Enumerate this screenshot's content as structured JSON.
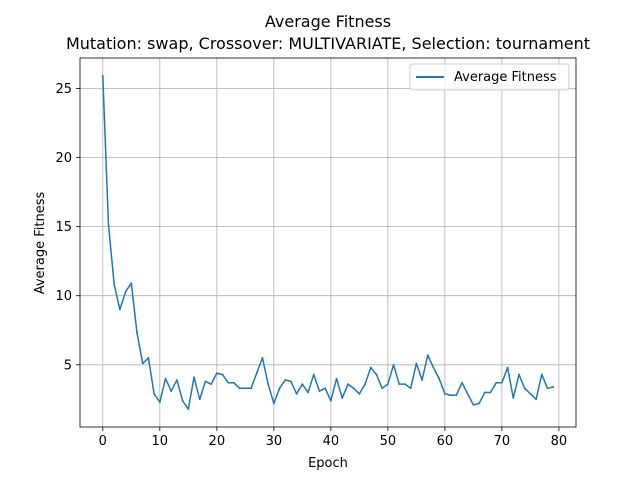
{
  "chart_data": {
    "type": "line",
    "title": "Average Fitness",
    "subtitle": "Mutation: swap, Crossover: MULTIVARIATE, Selection: tournament",
    "xlabel": "Epoch",
    "ylabel": "Average Fitness",
    "xlim": [
      -4,
      83
    ],
    "ylim": [
      0.5,
      27.2
    ],
    "xticks": [
      0,
      10,
      20,
      30,
      40,
      50,
      60,
      70,
      80
    ],
    "yticks": [
      5,
      10,
      15,
      20,
      25
    ],
    "grid": true,
    "legend_position": "top-right",
    "series": [
      {
        "name": "Average Fitness",
        "color": "#1f77b4",
        "x": [
          0,
          1,
          2,
          3,
          4,
          5,
          6,
          7,
          8,
          9,
          10,
          11,
          12,
          13,
          14,
          15,
          16,
          17,
          18,
          19,
          20,
          21,
          22,
          23,
          24,
          25,
          26,
          27,
          28,
          29,
          30,
          31,
          32,
          33,
          34,
          35,
          36,
          37,
          38,
          39,
          40,
          41,
          42,
          43,
          44,
          45,
          46,
          47,
          48,
          49,
          50,
          51,
          52,
          53,
          54,
          55,
          56,
          57,
          58,
          59,
          60,
          61,
          62,
          63,
          64,
          65,
          66,
          67,
          68,
          69,
          70,
          71,
          72,
          73,
          74,
          75,
          76,
          77,
          78,
          79
        ],
        "values": [
          25.9,
          15.1,
          10.8,
          9.0,
          10.3,
          10.9,
          7.3,
          5.1,
          5.5,
          2.9,
          2.3,
          4.0,
          3.1,
          3.9,
          2.4,
          1.8,
          4.1,
          2.5,
          3.8,
          3.6,
          4.4,
          4.3,
          3.7,
          3.7,
          3.3,
          3.3,
          3.3,
          4.4,
          5.5,
          3.6,
          2.2,
          3.3,
          3.9,
          3.8,
          2.9,
          3.6,
          3.0,
          4.3,
          3.1,
          3.3,
          2.4,
          4.0,
          2.6,
          3.6,
          3.3,
          2.9,
          3.6,
          4.8,
          4.3,
          3.3,
          3.6,
          5.0,
          3.6,
          3.6,
          3.3,
          5.1,
          3.9,
          5.7,
          4.8,
          4.0,
          2.9,
          2.8,
          2.8,
          3.7,
          2.9,
          2.1,
          2.2,
          3.0,
          3.0,
          3.7,
          3.7,
          4.8,
          2.6,
          4.3,
          3.3,
          2.9,
          2.5,
          4.3,
          3.3,
          3.4
        ]
      }
    ]
  }
}
